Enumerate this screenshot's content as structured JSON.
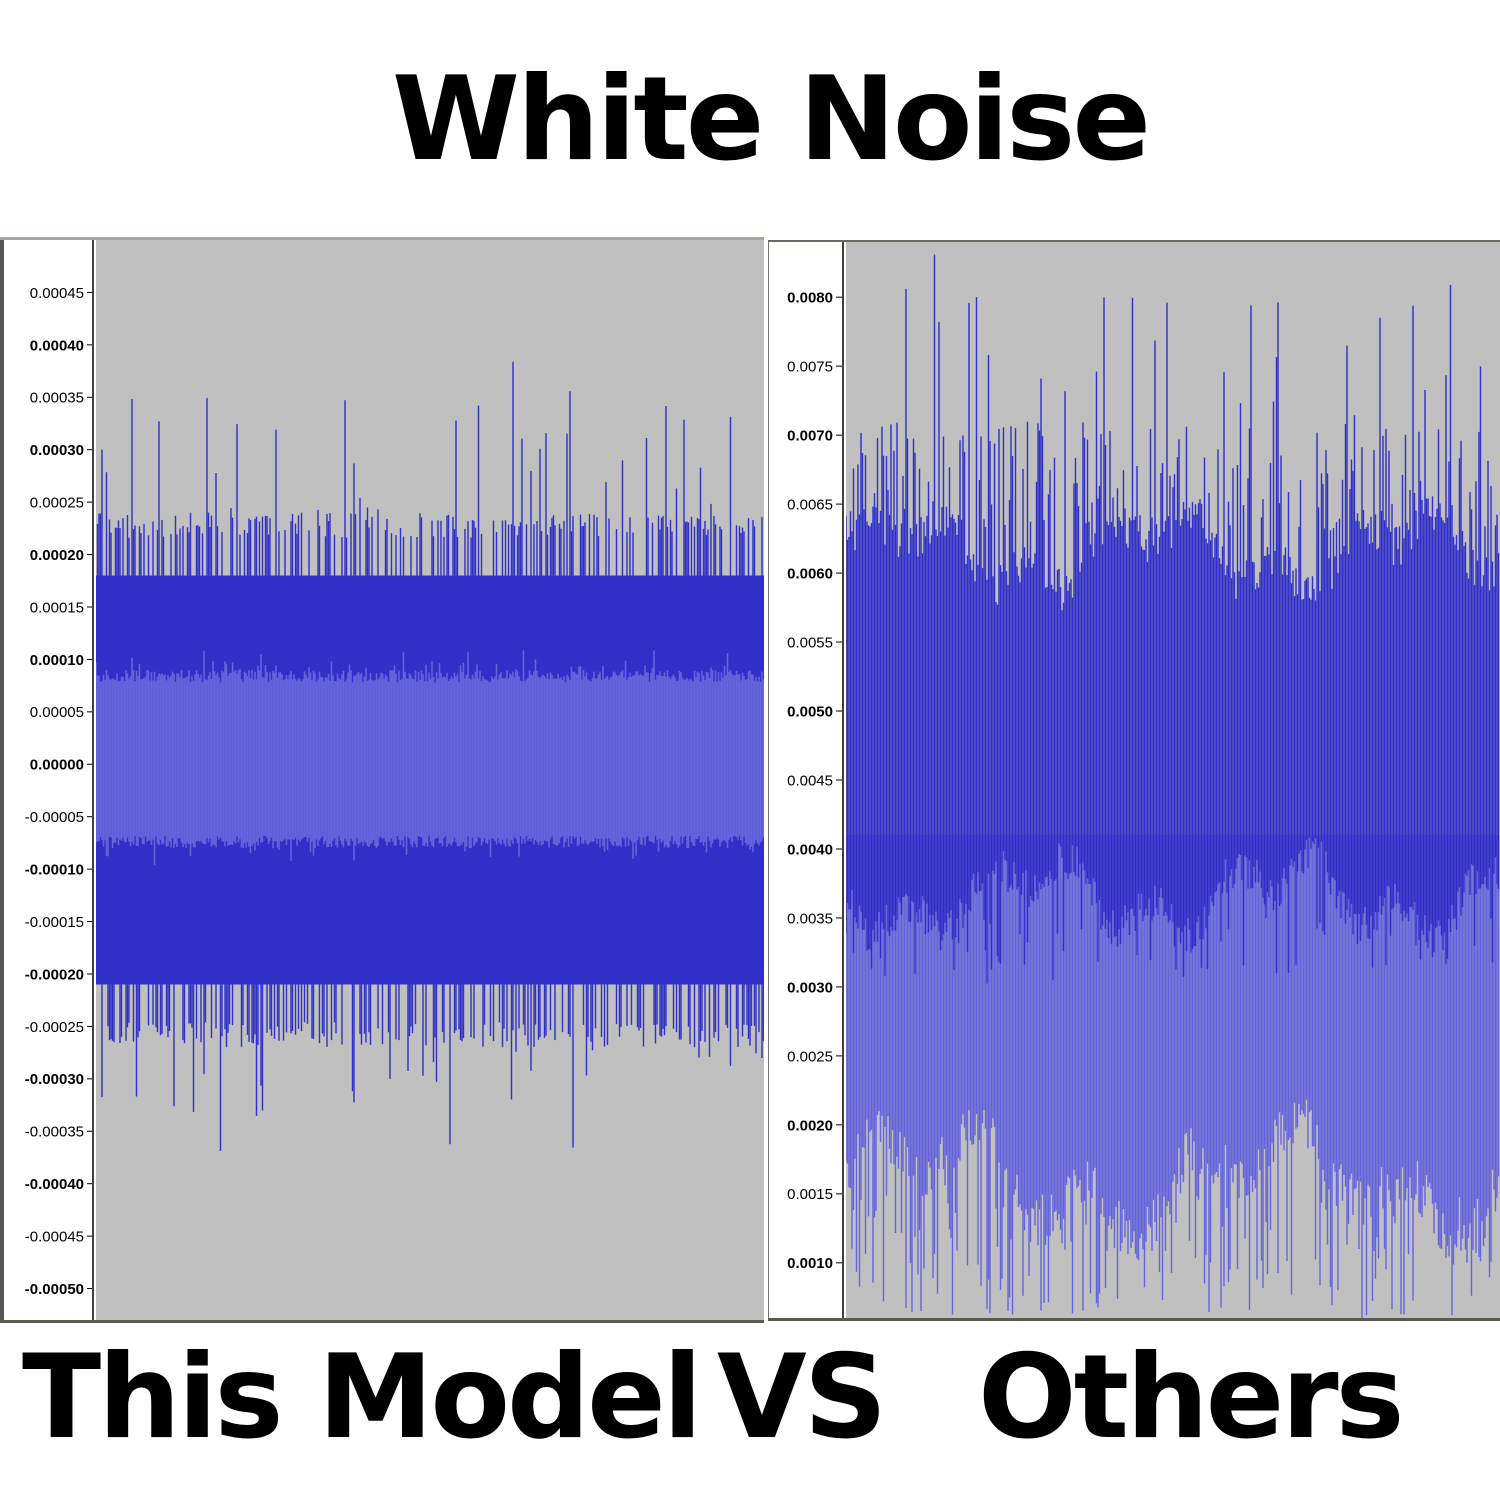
{
  "title": "White Noise",
  "captions": {
    "left": "This Model",
    "vs": "VS",
    "right": "Others"
  },
  "colors": {
    "plot_bg": "#c0c0c0",
    "wave_dark": "#3030c8",
    "wave_light": "#6464dc",
    "ruler_bg": "#ffffff"
  },
  "chart_data": [
    {
      "type": "area",
      "caption": "This Model",
      "ylim": [
        -0.00053,
        0.0005
      ],
      "yticks": [
        "0.00045",
        "0.00040",
        "0.00035",
        "0.00030",
        "0.00025",
        "0.00020",
        "0.00015",
        "0.00010",
        "0.00005",
        "0.00000",
        "-0.00005",
        "-0.00010",
        "-0.00015",
        "-0.00020",
        "-0.00025",
        "-0.00030",
        "-0.00035",
        "-0.00040",
        "-0.00045",
        "-0.00050"
      ],
      "ytick_values": [
        0.00045,
        0.0004,
        0.00035,
        0.0003,
        0.00025,
        0.0002,
        0.00015,
        0.0001,
        5e-05,
        0.0,
        -5e-05,
        -0.0001,
        -0.00015,
        -0.0002,
        -0.00025,
        -0.0003,
        -0.00035,
        -0.0004,
        -0.00045,
        -0.0005
      ],
      "bold_ticks": [
        "0.00040",
        "0.00030",
        "0.00020",
        "0.00010",
        "0.00000",
        "-0.00010",
        "-0.00020",
        "-0.00030",
        "-0.00040",
        "-0.00050"
      ],
      "envelope": {
        "rms_top": 9e-05,
        "rms_bottom": -8e-05,
        "typ_top": 0.00018,
        "typ_bottom": -0.00021,
        "frequent_peak_top": 0.00024,
        "frequent_peak_bottom": -0.00027,
        "max_top": 0.0004,
        "max_bottom": -0.00037
      }
    },
    {
      "type": "area",
      "caption": "Others",
      "ylim": [
        0.0006,
        0.0084
      ],
      "yticks": [
        "0.0080",
        "0.0075",
        "0.0070",
        "0.0065",
        "0.0060",
        "0.0055",
        "0.0050",
        "0.0045",
        "0.0040",
        "0.0035",
        "0.0030",
        "0.0025",
        "0.0020",
        "0.0015",
        "0.0010"
      ],
      "ytick_values": [
        0.008,
        0.0075,
        0.007,
        0.0065,
        0.006,
        0.0055,
        0.005,
        0.0045,
        0.004,
        0.0035,
        0.003,
        0.0025,
        0.002,
        0.0015,
        0.001
      ],
      "bold_ticks": [
        "0.0080",
        "0.0070",
        "0.0060",
        "0.0050",
        "0.0040",
        "0.0030",
        "0.0020",
        "0.0010"
      ],
      "envelope": {
        "dark_band_top": 0.006,
        "dark_band_bottom": 0.0038,
        "light_band_top": 0.0038,
        "light_band_bottom": 0.0018,
        "peak_top_typ": 0.0068,
        "peak_top_max": 0.0084,
        "light_spikes_bottom": 0.0006
      }
    }
  ]
}
